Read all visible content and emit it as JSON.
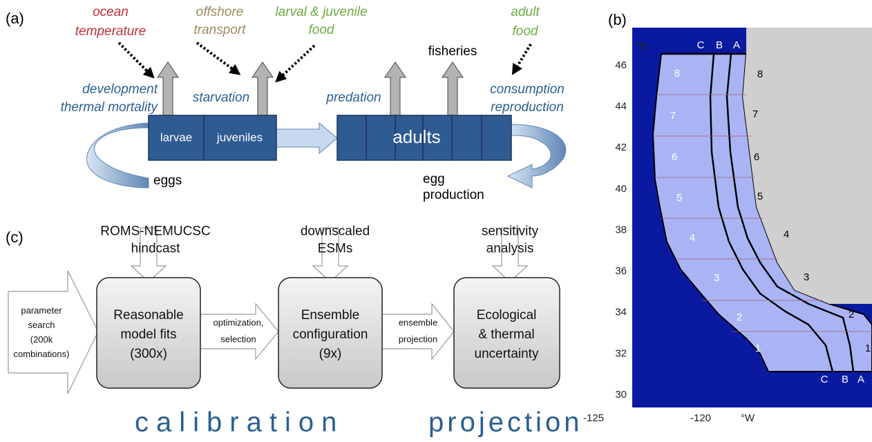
{
  "panel_a": {
    "label": "(a)",
    "drivers": {
      "ocean_temperature": [
        "ocean",
        "temperature"
      ],
      "offshore_transport": [
        "offshore",
        "transport"
      ],
      "larval_juvenile_food": [
        "larval & juvenile",
        "food"
      ],
      "adult_food": [
        "adult",
        "food"
      ]
    },
    "fisheries": "fisheries",
    "processes": {
      "larvae": [
        "development",
        "thermal mortality"
      ],
      "juveniles": "starvation",
      "predation": "predation",
      "adults": [
        "consumption",
        "reproduction"
      ]
    },
    "stages": {
      "larvae": "larvae",
      "juveniles": "juveniles",
      "adults": "adults"
    },
    "eggs": "eggs",
    "egg_production": [
      "egg",
      "production"
    ]
  },
  "panel_b": {
    "label": "(b)",
    "lat_unit": "°N",
    "lon_unit": "°W",
    "lat_ticks": [
      30,
      32,
      34,
      36,
      38,
      40,
      42,
      44,
      46
    ],
    "lon_ticks": [
      -125,
      -120
    ],
    "regions_west": [
      "1",
      "2",
      "3",
      "4",
      "5",
      "6",
      "7",
      "8"
    ],
    "regions_east": [
      "1",
      "2",
      "3",
      "4",
      "5",
      "6",
      "7",
      "8"
    ],
    "zones_top": [
      "C",
      "B",
      "A"
    ],
    "zones_bottom": [
      "C",
      "B",
      "A"
    ]
  },
  "panel_c": {
    "label": "(c)",
    "inputs": [
      [
        "ROMS-NEMUCSC",
        "hindcast"
      ],
      [
        "downscaled",
        "ESMs"
      ],
      [
        "sensitivity",
        "analysis"
      ]
    ],
    "start": [
      "parameter",
      "search",
      "(200k",
      "combinations)"
    ],
    "boxes": [
      [
        "Reasonable",
        "model fits",
        "(300x)"
      ],
      [
        "Ensemble",
        "configuration",
        "(9x)"
      ],
      [
        "Ecological",
        "& thermal",
        "uncertainty"
      ]
    ],
    "links": [
      [
        "optimization,",
        "selection"
      ],
      [
        "ensemble",
        "projection"
      ]
    ],
    "phases": [
      "calibration",
      "projection"
    ]
  }
}
